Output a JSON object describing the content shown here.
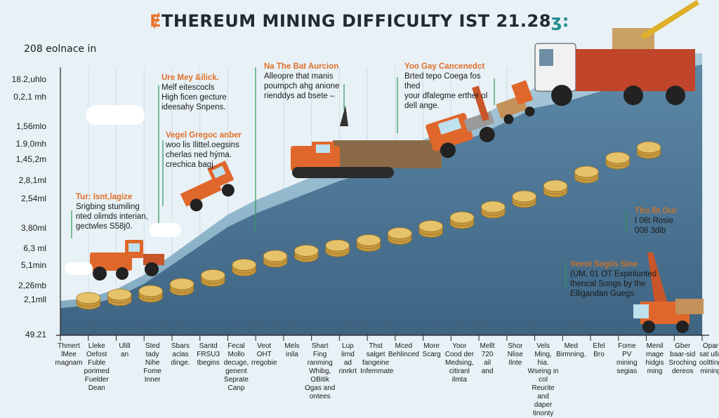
{
  "title": {
    "prefix": "Ɇ",
    "main": "THEREUM MINING DIFFICULTY IST 21.28",
    "suffix": "ʒ:"
  },
  "y_axis_top_label": "208 eolnace in",
  "y_ticks": [
    "18.2,uhlo",
    "0,2,1 mh",
    "1,56mlo",
    "1.9,0mh",
    "1,45,2m",
    "2,8,1ml",
    "2,54ml",
    "3,80ml",
    "6,3 ml",
    "5,1min",
    "2,26mb",
    "2,1mll",
    "49.21"
  ],
  "annotations": [
    {
      "head": "Tur: Isnt,lagize",
      "lines": [
        "Srigbing stumiling",
        "nted olimds interian,",
        "gectwles S58j0."
      ]
    },
    {
      "head": "Ure Mey &ilick.",
      "lines": [
        "Melf eitescocls",
        "High ficen gecture",
        "ideesahy Snpens."
      ]
    },
    {
      "head": "Vegel Gregoc anber",
      "lines": [
        "woo lis Ilittel.oegsins",
        "cherlas ned hýma.",
        "crechica bagj."
      ]
    },
    {
      "head": "Na The Bat Aurcion",
      "lines": [
        "Alleopre that manis",
        "poumpch ahg anione",
        "rienddys ad bsete –"
      ]
    },
    {
      "head": "Yoo Gay Cancenedct",
      "lines": [
        "Brted tepo Coega fos thed",
        "your dfalegme erther ol",
        "dell ange."
      ]
    },
    {
      "head": "Tho Bt Our",
      "lines": [
        "I 06t Rosie",
        "008 3dib"
      ]
    },
    {
      "head": "Veeot Sogiis Sine",
      "lines": [
        "(UM, 01 OT Expirilunted",
        "thencal Songs by the",
        "Elligandan Guegs."
      ]
    }
  ],
  "x_categories": [
    [
      "Thmert",
      "lMee",
      "magnam"
    ],
    [
      "Lleke",
      "Oefost",
      "Fuble",
      "porimed",
      "Fuelder",
      "Dean"
    ],
    [
      "Ulill",
      "an"
    ],
    [
      "Sted",
      "tady",
      "Nihe",
      "Fome",
      "Inner"
    ],
    [
      "Sbars",
      "aclas",
      "dinge."
    ],
    [
      "Santd",
      "FRSU3",
      "tbegins"
    ],
    [
      "Fecal",
      "Mollo",
      "decuge,",
      "genent",
      "Seprate",
      "Canp"
    ],
    [
      "Veot",
      "OHT",
      "rregobie"
    ],
    [
      "Mels",
      "inila"
    ],
    [
      "Shart",
      "Fing",
      "ranming",
      "Whibg, OBitik",
      "Ogas and",
      "ontees"
    ],
    [
      "Lup",
      "lirnd",
      "ad",
      "rinrkrt"
    ],
    [
      "Thst",
      "salget",
      "fangeine",
      "Infemmate"
    ],
    [
      "Mced",
      "Behlinced",
      ""
    ],
    [
      "More",
      "Scarg"
    ],
    [
      "Yoor",
      "Cood der",
      "Medsing,",
      "citiranl ilmta"
    ],
    [
      "Mellt",
      "720",
      "ail",
      "and"
    ],
    [
      "Shor",
      "Nlise",
      "Ilnte"
    ],
    [
      "Vels",
      "Ming,",
      "hia.",
      "Wseing in col",
      "Reurite and",
      "daper tinonty"
    ],
    [
      "Med",
      "Birmning,"
    ],
    [
      "Efel",
      "Bro"
    ],
    [
      "Fome",
      "PV",
      "mining",
      "segias"
    ],
    [
      "Menil",
      "mage",
      "hidgis",
      "ming"
    ],
    [
      "Gber",
      "baar-sid",
      "Sroching",
      "dereos"
    ],
    [
      "Opar",
      "sat ulla",
      "ooltting",
      "mining"
    ]
  ],
  "chart_data": {
    "type": "area",
    "title": "ƎTHEREUM MINING DIFFICULTY IST 21.28ʒ:",
    "ylabel": "208 eolnace in",
    "y_tick_labels": [
      "18.2,uhlo",
      "0,2,1 mh",
      "1,56mlo",
      "1.9,0mh",
      "1,45,2m",
      "2,8,1ml",
      "2,54ml",
      "3,80ml",
      "6,3 ml",
      "5,1min",
      "2,26mb",
      "2,1mll",
      "49.21"
    ],
    "x_index": [
      0,
      1,
      2,
      3,
      4,
      5,
      6,
      7,
      8,
      9,
      10,
      11,
      12,
      13,
      14,
      15,
      16,
      17,
      18,
      19,
      20,
      21,
      22,
      23
    ],
    "difficulty_series": [
      0.1,
      0.11,
      0.14,
      0.19,
      0.26,
      0.33,
      0.4,
      0.45,
      0.49,
      0.53,
      0.57,
      0.6,
      0.63,
      0.66,
      0.7,
      0.74,
      0.79,
      0.84,
      0.86,
      0.89,
      0.92,
      0.95,
      0.98,
      1.0
    ],
    "coin_level_series": [
      0.06,
      0.08,
      0.1,
      0.14,
      0.19,
      0.25,
      0.3,
      0.33,
      0.36,
      0.39,
      0.43,
      0.47,
      0.52,
      0.58,
      0.64,
      0.7,
      0.78,
      0.86,
      0.92
    ],
    "grid": true,
    "colors": {
      "area_front": "#4a708e",
      "area_back": "#8eb6cc",
      "accent": "#e8742a",
      "coin": "#e6c36a",
      "truck": "#e0672b"
    }
  }
}
